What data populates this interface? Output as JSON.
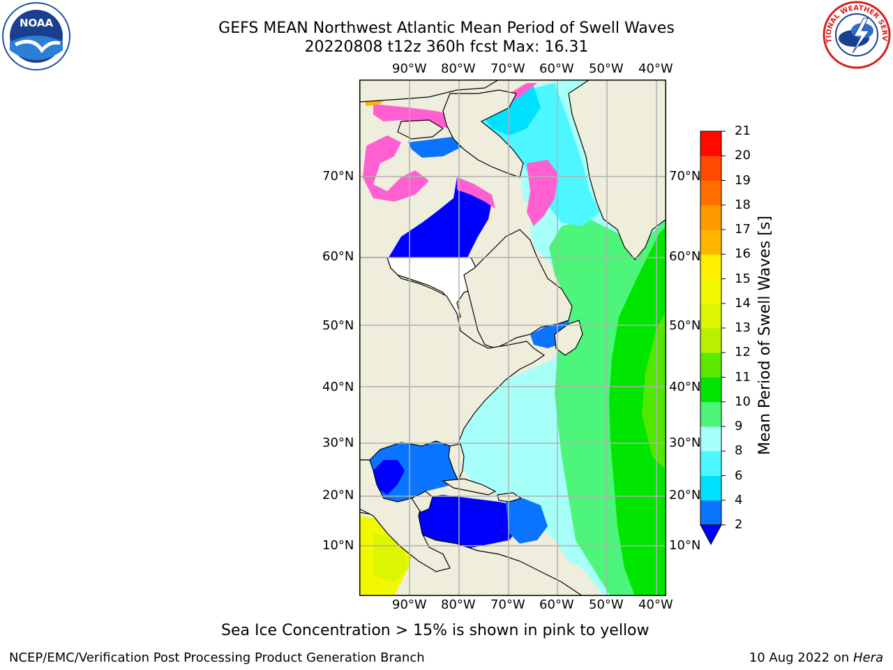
{
  "header": {
    "title_line1": "GEFS MEAN Northwest Atlantic Mean Period of Swell Waves",
    "title_line2": "20220808 t12z 360h fcst   Max: 16.31"
  },
  "logos": {
    "left": {
      "name": "noaa-logo",
      "text": "NOAA"
    },
    "right": {
      "name": "national-weather-service-logo",
      "text": "NATIONAL WEATHER SERVICE"
    }
  },
  "map": {
    "lon_ticks": [
      "90°W",
      "80°W",
      "70°W",
      "60°W",
      "50°W",
      "40°W"
    ],
    "lat_ticks": [
      "70°N",
      "60°N",
      "50°N",
      "40°N",
      "30°N",
      "20°N",
      "10°N"
    ],
    "colors": {
      "land": "#efeddc",
      "no_data": "#ffffff",
      "grid": "#b0b0b0",
      "coast": "#000000"
    }
  },
  "colorbar": {
    "title": "Mean Period of Swell Waves [s]",
    "labels": [
      "2",
      "4",
      "6",
      "8",
      "9",
      "10",
      "11",
      "12",
      "13",
      "14",
      "15",
      "16",
      "17",
      "18",
      "19",
      "20",
      "21"
    ],
    "bins": [
      {
        "from": 2,
        "to": 4,
        "color": "#0a74ff"
      },
      {
        "from": 4,
        "to": 6,
        "color": "#00e0ff"
      },
      {
        "from": 6,
        "to": 8,
        "color": "#4df7ff"
      },
      {
        "from": 8,
        "to": 9,
        "color": "#a6fff9"
      },
      {
        "from": 9,
        "to": 10,
        "color": "#4df57a"
      },
      {
        "from": 10,
        "to": 11,
        "color": "#00e600"
      },
      {
        "from": 11,
        "to": 12,
        "color": "#5ae800"
      },
      {
        "from": 12,
        "to": 13,
        "color": "#b8f000"
      },
      {
        "from": 13,
        "to": 14,
        "color": "#dcf500"
      },
      {
        "from": 14,
        "to": 15,
        "color": "#f2f800"
      },
      {
        "from": 15,
        "to": 16,
        "color": "#fff000"
      },
      {
        "from": 16,
        "to": 17,
        "color": "#ffb400"
      },
      {
        "from": 17,
        "to": 18,
        "color": "#ff9a00"
      },
      {
        "from": 18,
        "to": 19,
        "color": "#ff7000"
      },
      {
        "from": 19,
        "to": 20,
        "color": "#ff4a00"
      },
      {
        "from": 20,
        "to": 21,
        "color": "#ff0a00"
      }
    ],
    "under_color": "#0000ff"
  },
  "caption": "Sea Ice Concentration > 15% is shown in pink to yellow",
  "footer": {
    "left": "NCEP/EMC/Verification Post Processing Product Generation Branch",
    "right_date": "10 Aug 2022 on",
    "right_host": "Hera"
  }
}
